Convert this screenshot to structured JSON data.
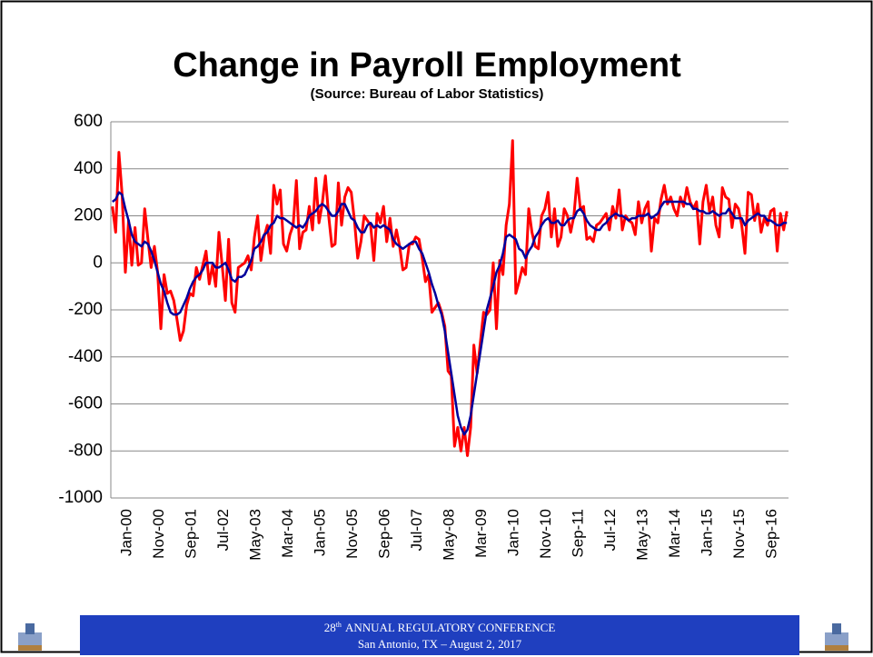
{
  "chart_data": {
    "type": "line",
    "title": "Change in Payroll Employment",
    "subtitle": "(Source: Bureau of Labor Statistics)",
    "categories": [
      "Jan-00",
      null,
      null,
      null,
      null,
      null,
      null,
      null,
      null,
      null,
      "Nov-00",
      null,
      null,
      null,
      null,
      null,
      null,
      null,
      null,
      null,
      "Sep-01",
      null,
      null,
      null,
      null,
      null,
      null,
      null,
      null,
      null,
      "Jul-02",
      null,
      null,
      null,
      null,
      null,
      null,
      null,
      null,
      null,
      "May-03",
      null,
      null,
      null,
      null,
      null,
      null,
      null,
      null,
      null,
      "Mar-04",
      null,
      null,
      null,
      null,
      null,
      null,
      null,
      null,
      null,
      "Jan-05",
      null,
      null,
      null,
      null,
      null,
      null,
      null,
      null,
      null,
      "Nov-05",
      null,
      null,
      null,
      null,
      null,
      null,
      null,
      null,
      null,
      "Sep-06",
      null,
      null,
      null,
      null,
      null,
      null,
      null,
      null,
      null,
      "Jul-07",
      null,
      null,
      null,
      null,
      null,
      null,
      null,
      null,
      null,
      "May-08",
      null,
      null,
      null,
      null,
      null,
      null,
      null,
      null,
      null,
      "Mar-09",
      null,
      null,
      null,
      null,
      null,
      null,
      null,
      null,
      null,
      "Jan-10",
      null,
      null,
      null,
      null,
      null,
      null,
      null,
      null,
      null,
      "Nov-10",
      null,
      null,
      null,
      null,
      null,
      null,
      null,
      null,
      null,
      "Sep-11",
      null,
      null,
      null,
      null,
      null,
      null,
      null,
      null,
      null,
      "Jul-12",
      null,
      null,
      null,
      null,
      null,
      null,
      null,
      null,
      null,
      "May-13",
      null,
      null,
      null,
      null,
      null,
      null,
      null,
      null,
      null,
      "Mar-14",
      null,
      null,
      null,
      null,
      null,
      null,
      null,
      null,
      null,
      "Jan-15",
      null,
      null,
      null,
      null,
      null,
      null,
      null,
      null,
      null,
      "Nov-15",
      null,
      null,
      null,
      null,
      null,
      null,
      null,
      null,
      null,
      "Sep-16",
      null,
      null,
      null,
      null,
      null,
      null,
      null,
      null,
      null
    ],
    "series": [
      {
        "color": "#ff0000",
        "values": [
          240,
          130,
          470,
          290,
          -40,
          180,
          -10,
          150,
          -10,
          0,
          230,
          100,
          -20,
          70,
          -40,
          -280,
          -50,
          -130,
          -120,
          -160,
          -240,
          -330,
          -290,
          -180,
          -130,
          -140,
          -20,
          -70,
          -10,
          50,
          -90,
          -10,
          -100,
          130,
          -10,
          -160,
          100,
          -170,
          -210,
          -20,
          -10,
          0,
          30,
          -30,
          110,
          200,
          10,
          110,
          160,
          40,
          330,
          250,
          310,
          80,
          50,
          120,
          160,
          350,
          60,
          130,
          140,
          240,
          140,
          360,
          170,
          250,
          370,
          200,
          70,
          80,
          340,
          160,
          280,
          320,
          300,
          180,
          20,
          90,
          200,
          180,
          160,
          10,
          210,
          170,
          240,
          90,
          190,
          70,
          140,
          70,
          -30,
          -20,
          80,
          80,
          110,
          100,
          20,
          -80,
          -50,
          -210,
          -190,
          -170,
          -210,
          -270,
          -460,
          -480,
          -780,
          -700,
          -800,
          -700,
          -820,
          -700,
          -350,
          -470,
          -340,
          -210,
          -220,
          -200,
          0,
          -280,
          10,
          -50,
          160,
          250,
          520,
          -130,
          -80,
          -20,
          -50,
          230,
          130,
          70,
          60,
          200,
          230,
          300,
          110,
          230,
          70,
          110,
          230,
          200,
          130,
          200,
          360,
          230,
          240,
          100,
          110,
          90,
          160,
          170,
          190,
          210,
          140,
          240,
          190,
          310,
          140,
          200,
          180,
          170,
          120,
          260,
          170,
          230,
          260,
          50,
          190,
          170,
          270,
          330,
          250,
          280,
          230,
          200,
          280,
          240,
          320,
          260,
          230,
          260,
          80,
          260,
          330,
          220,
          280,
          160,
          110,
          320,
          280,
          270,
          150,
          250,
          230,
          160,
          40,
          300,
          290,
          180,
          250,
          130,
          190,
          160,
          220,
          230,
          50,
          210,
          140,
          220
        ]
      },
      {
        "color": "#00009c",
        "values": [
          260,
          270,
          300,
          290,
          230,
          180,
          120,
          90,
          80,
          70,
          90,
          80,
          50,
          10,
          -40,
          -90,
          -120,
          -170,
          -210,
          -220,
          -220,
          -210,
          -180,
          -150,
          -110,
          -80,
          -60,
          -50,
          -30,
          0,
          0,
          0,
          -20,
          -20,
          -10,
          0,
          -30,
          -70,
          -80,
          -60,
          -60,
          -50,
          -20,
          10,
          60,
          70,
          90,
          120,
          130,
          160,
          170,
          200,
          190,
          190,
          180,
          170,
          160,
          150,
          160,
          150,
          170,
          200,
          210,
          220,
          240,
          250,
          240,
          220,
          200,
          200,
          220,
          250,
          250,
          220,
          190,
          180,
          150,
          130,
          130,
          160,
          170,
          150,
          160,
          150,
          160,
          150,
          140,
          100,
          80,
          70,
          60,
          70,
          80,
          90,
          90,
          60,
          40,
          0,
          -40,
          -90,
          -130,
          -180,
          -220,
          -290,
          -380,
          -470,
          -560,
          -650,
          -700,
          -730,
          -710,
          -650,
          -560,
          -470,
          -380,
          -290,
          -200,
          -150,
          -100,
          -40,
          -10,
          40,
          110,
          120,
          110,
          100,
          60,
          50,
          20,
          50,
          70,
          110,
          130,
          160,
          180,
          190,
          170,
          170,
          180,
          160,
          160,
          180,
          190,
          190,
          220,
          230,
          210,
          180,
          160,
          150,
          140,
          140,
          160,
          170,
          190,
          200,
          210,
          200,
          200,
          190,
          180,
          190,
          190,
          200,
          200,
          200,
          210,
          190,
          200,
          210,
          240,
          260,
          260,
          260,
          260,
          260,
          260,
          260,
          250,
          250,
          230,
          230,
          220,
          220,
          210,
          210,
          220,
          210,
          200,
          210,
          210,
          230,
          210,
          190,
          190,
          190,
          160,
          180,
          190,
          200,
          210,
          200,
          200,
          180,
          180,
          170,
          160,
          160,
          170,
          170
        ]
      }
    ],
    "ylim": [
      -1000,
      600
    ],
    "yticks": [
      -1000,
      -800,
      -600,
      -400,
      -200,
      0,
      200,
      400,
      600
    ],
    "grid": true
  },
  "footer": {
    "line1_number": "28",
    "line1_suffix": "th",
    "line1_text": "ANNUAL REGULATORY CONFERENCE",
    "line2": "San Antonio, TX – August 2, 2017"
  }
}
